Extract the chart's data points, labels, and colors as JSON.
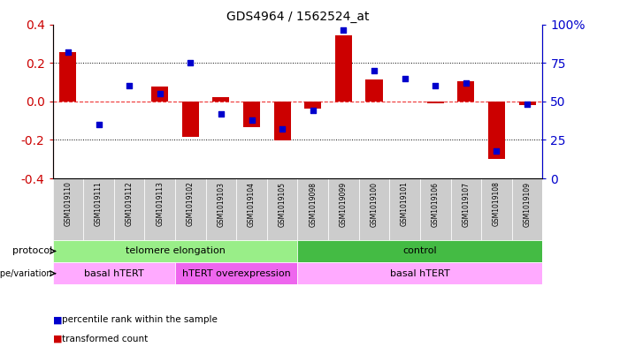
{
  "title": "GDS4964 / 1562524_at",
  "samples": [
    "GSM1019110",
    "GSM1019111",
    "GSM1019112",
    "GSM1019113",
    "GSM1019102",
    "GSM1019103",
    "GSM1019104",
    "GSM1019105",
    "GSM1019098",
    "GSM1019099",
    "GSM1019100",
    "GSM1019101",
    "GSM1019106",
    "GSM1019107",
    "GSM1019108",
    "GSM1019109"
  ],
  "bar_values": [
    0.255,
    0.0,
    0.0,
    0.075,
    -0.185,
    0.02,
    -0.135,
    -0.205,
    -0.04,
    0.345,
    0.115,
    0.0,
    -0.01,
    0.105,
    -0.3,
    -0.02
  ],
  "dot_values": [
    82,
    35,
    60,
    55,
    75,
    42,
    38,
    32,
    44,
    96,
    70,
    65,
    60,
    62,
    18,
    48
  ],
  "ylim": [
    -0.4,
    0.4
  ],
  "y2lim": [
    0,
    100
  ],
  "yticks": [
    -0.4,
    -0.2,
    0.0,
    0.2,
    0.4
  ],
  "y2ticks": [
    0,
    25,
    50,
    75,
    100
  ],
  "hline_y": 0.0,
  "dotted_lines": [
    -0.2,
    0.2
  ],
  "bar_color": "#cc0000",
  "dot_color": "#0000cc",
  "hline_color": "#ee3333",
  "bg_color": "#ffffff",
  "plot_bg": "#ffffff",
  "protocol_groups": [
    {
      "label": "telomere elongation",
      "start": 0,
      "end": 7,
      "color": "#99ee88"
    },
    {
      "label": "control",
      "start": 8,
      "end": 15,
      "color": "#44bb44"
    }
  ],
  "genotype_groups": [
    {
      "label": "basal hTERT",
      "start": 0,
      "end": 3,
      "color": "#ffaaff"
    },
    {
      "label": "hTERT overexpression",
      "start": 4,
      "end": 7,
      "color": "#ee66ee"
    },
    {
      "label": "basal hTERT",
      "start": 8,
      "end": 15,
      "color": "#ffaaff"
    }
  ],
  "legend_items": [
    {
      "color": "#cc0000",
      "label": "transformed count"
    },
    {
      "color": "#0000cc",
      "label": "percentile rank within the sample"
    }
  ],
  "tick_label_color_left": "#cc0000",
  "tick_label_color_right": "#0000cc",
  "sample_bg": "#cccccc"
}
